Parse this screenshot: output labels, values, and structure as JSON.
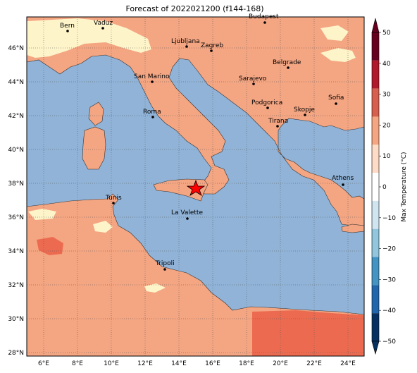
{
  "title": "Forecast of 2022021200 (f144-168)",
  "lon_ticks": [
    "6°E",
    "8°E",
    "10°E",
    "12°E",
    "14°E",
    "16°E",
    "18°E",
    "20°E",
    "22°E",
    "24°E"
  ],
  "lat_ticks": [
    "46°N",
    "44°N",
    "42°N",
    "40°N",
    "38°N",
    "36°N",
    "34°N",
    "32°N",
    "30°N",
    "28°N"
  ],
  "cities": [
    {
      "name": "Bern"
    },
    {
      "name": "Vaduz"
    },
    {
      "name": "Ljubljana"
    },
    {
      "name": "Zagreb"
    },
    {
      "name": "Budapest"
    },
    {
      "name": "San Marino"
    },
    {
      "name": "Belgrade"
    },
    {
      "name": "Sarajevo"
    },
    {
      "name": "Podgorica"
    },
    {
      "name": "Skopje"
    },
    {
      "name": "Sofia"
    },
    {
      "name": "Roma"
    },
    {
      "name": "Tirana"
    },
    {
      "name": "Athens"
    },
    {
      "name": "Tunis"
    },
    {
      "name": "La Valette"
    },
    {
      "name": "Tripoli"
    }
  ],
  "colorbar": {
    "label": "Max Temperature (°C)",
    "ticks": [
      "50",
      "40",
      "30",
      "20",
      "10",
      "0",
      "−10",
      "−20",
      "−30",
      "−40",
      "−50"
    ],
    "colors": [
      "#67001f",
      "#b2182b",
      "#d6604d",
      "#f4a582",
      "#fddbc7",
      "#ffffff",
      "#d1e5f0",
      "#92c5de",
      "#4393c3",
      "#2166ac",
      "#053061"
    ]
  },
  "colors": {
    "sea": "#90b3d7",
    "land_warm": "#f4a582",
    "land_hot": "#ec6b50",
    "land_mild": "#fdf4c9",
    "marker": "#ff0000"
  }
}
